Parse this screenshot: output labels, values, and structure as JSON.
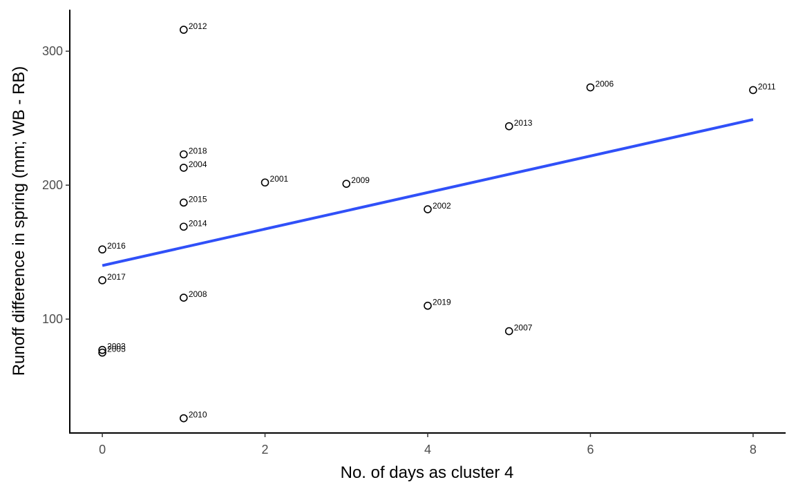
{
  "chart_data": {
    "type": "scatter",
    "title": "",
    "xlabel": "No. of days as cluster 4",
    "ylabel": "Runoff difference in spring (mm; WB - RB)",
    "xlim": [
      -0.4,
      8.4
    ],
    "ylim": [
      15,
      331
    ],
    "x_ticks": [
      0,
      2,
      4,
      6,
      8
    ],
    "y_ticks": [
      100,
      200,
      300
    ],
    "grid": false,
    "legend": "none",
    "colors": {
      "points": "#000000",
      "trend": "#3050f8",
      "axis": "#000000",
      "tick_text": "#4d4d4d"
    },
    "points": [
      {
        "label": "2012",
        "x": 1,
        "y": 316
      },
      {
        "label": "2006",
        "x": 6,
        "y": 273
      },
      {
        "label": "2011",
        "x": 8,
        "y": 271
      },
      {
        "label": "2013",
        "x": 5,
        "y": 244
      },
      {
        "label": "2018",
        "x": 1,
        "y": 223
      },
      {
        "label": "2004",
        "x": 1,
        "y": 213
      },
      {
        "label": "2001",
        "x": 2,
        "y": 202
      },
      {
        "label": "2009",
        "x": 3,
        "y": 201
      },
      {
        "label": "2015",
        "x": 1,
        "y": 187
      },
      {
        "label": "2002",
        "x": 4,
        "y": 182
      },
      {
        "label": "2014",
        "x": 1,
        "y": 169
      },
      {
        "label": "2016",
        "x": 0,
        "y": 152
      },
      {
        "label": "2017",
        "x": 0,
        "y": 129
      },
      {
        "label": "2008",
        "x": 1,
        "y": 116
      },
      {
        "label": "2019",
        "x": 4,
        "y": 110
      },
      {
        "label": "2007",
        "x": 5,
        "y": 91
      },
      {
        "label": "2003",
        "x": 0,
        "y": 77
      },
      {
        "label": "2005",
        "x": 0,
        "y": 75
      },
      {
        "label": "2010",
        "x": 1,
        "y": 26
      }
    ],
    "trend_line": {
      "x": [
        0,
        8
      ],
      "y": [
        140,
        249
      ]
    }
  }
}
